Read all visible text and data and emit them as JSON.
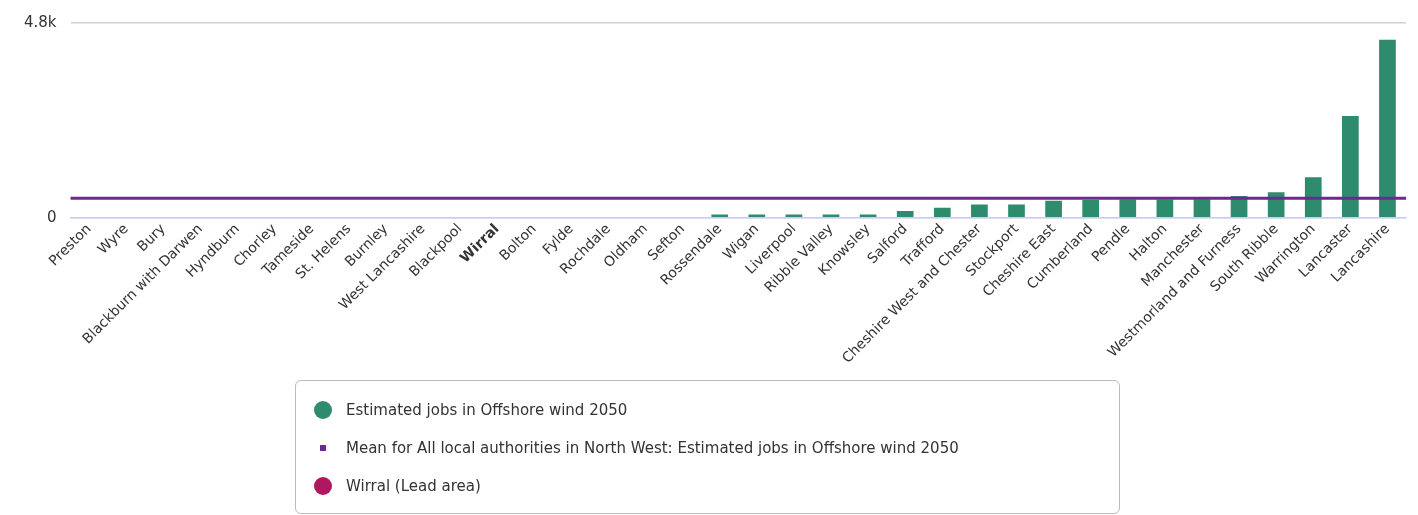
{
  "chart_data": {
    "type": "bar",
    "categories": [
      "Preston",
      "Wyre",
      "Bury",
      "Blackburn with Darwen",
      "Hyndburn",
      "Chorley",
      "Tameside",
      "St. Helens",
      "Burnley",
      "West Lancashire",
      "Blackpool",
      "Wirral",
      "Bolton",
      "Fylde",
      "Rochdale",
      "Oldham",
      "Sefton",
      "Rossendale",
      "Wigan",
      "Liverpool",
      "Ribble Valley",
      "Knowsley",
      "Salford",
      "Trafford",
      "Cheshire West and Chester",
      "Stockport",
      "Cheshire East",
      "Cumberland",
      "Pendle",
      "Halton",
      "Manchester",
      "Westmorland and Furness",
      "South Ribble",
      "Warrington",
      "Lancaster",
      "Lancashire"
    ],
    "series": [
      {
        "name": "Estimated jobs in Offshore wind 2050",
        "color": "#2e8b6e",
        "values": [
          0,
          0,
          0,
          0,
          0,
          0,
          0,
          0,
          0,
          0,
          0,
          null,
          0,
          0,
          0,
          0,
          0,
          80,
          80,
          80,
          80,
          80,
          170,
          250,
          330,
          330,
          420,
          440,
          450,
          450,
          460,
          540,
          630,
          1000,
          2510,
          4390
        ]
      },
      {
        "name": "Wirral (Lead area)",
        "color": "#b0175e",
        "values": [
          null,
          null,
          null,
          null,
          null,
          null,
          null,
          null,
          null,
          null,
          null,
          0,
          null,
          null,
          null,
          null,
          null,
          null,
          null,
          null,
          null,
          null,
          null,
          null,
          null,
          null,
          null,
          null,
          null,
          null,
          null,
          null,
          null,
          null,
          null,
          null
        ]
      }
    ],
    "stacked": true,
    "ylim": [
      0,
      4800
    ],
    "yticks": [
      0,
      {
        "value": 4800,
        "label": "4.8k"
      }
    ],
    "grid": "y",
    "legend": "bottom",
    "ref_lines": [
      {
        "axis": "y",
        "value": 480,
        "label": "Mean for All local authorities in North West: Estimated jobs in Offshore wind 2050",
        "color": "#6b2a8c"
      }
    ]
  }
}
